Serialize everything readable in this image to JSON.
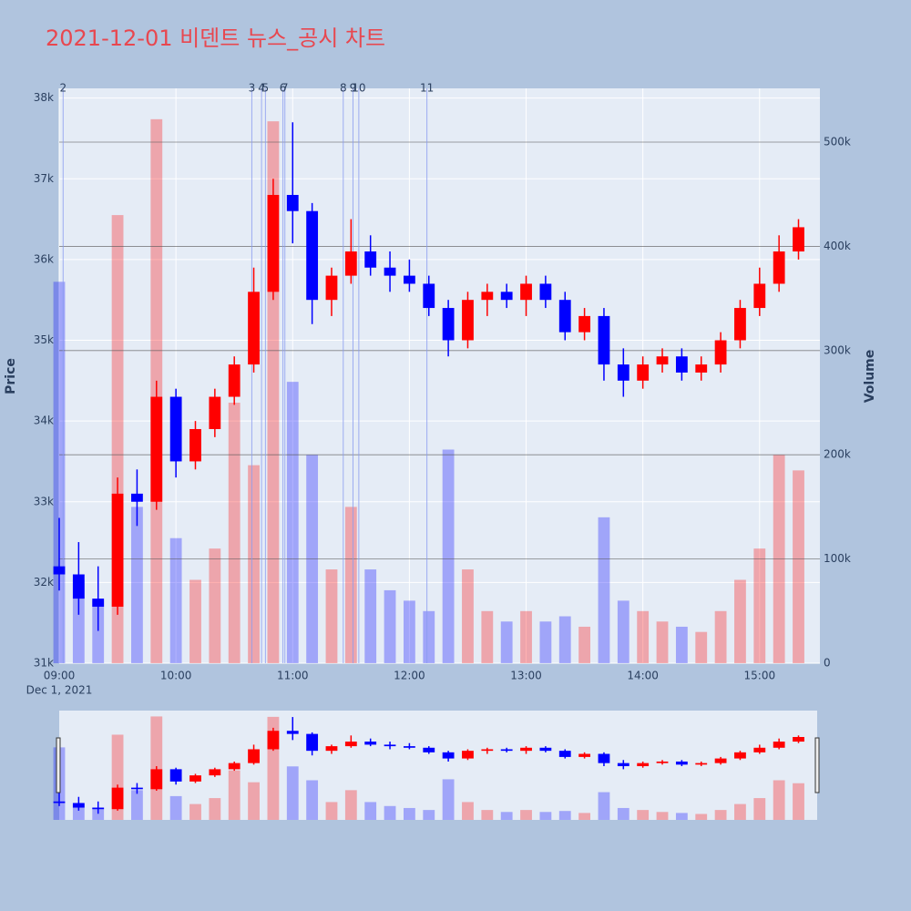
{
  "chart_data": {
    "type": "candlestick",
    "title": "2021-12-01 비덴트 뉴스_공시 차트",
    "ylabel": "Price",
    "y2label": "Volume",
    "x_date_label": "Dec 1, 2021",
    "up_color": "#ff0000",
    "down_color": "#0000ff",
    "x": [
      "2021-12-01 09:00",
      "2021-12-01 09:10",
      "2021-12-01 09:20",
      "2021-12-01 09:30",
      "2021-12-01 09:40",
      "2021-12-01 09:50",
      "2021-12-01 10:00",
      "2021-12-01 10:10",
      "2021-12-01 10:20",
      "2021-12-01 10:30",
      "2021-12-01 10:40",
      "2021-12-01 10:50",
      "2021-12-01 11:00",
      "2021-12-01 11:10",
      "2021-12-01 11:20",
      "2021-12-01 11:30",
      "2021-12-01 11:40",
      "2021-12-01 11:50",
      "2021-12-01 12:00",
      "2021-12-01 12:10",
      "2021-12-01 12:20",
      "2021-12-01 12:30",
      "2021-12-01 12:40",
      "2021-12-01 12:50",
      "2021-12-01 13:00",
      "2021-12-01 13:10",
      "2021-12-01 13:20",
      "2021-12-01 13:30",
      "2021-12-01 13:40",
      "2021-12-01 13:50",
      "2021-12-01 14:00",
      "2021-12-01 14:10",
      "2021-12-01 14:20",
      "2021-12-01 14:30",
      "2021-12-01 14:40",
      "2021-12-01 14:50",
      "2021-12-01 15:00",
      "2021-12-01 15:10",
      "2021-12-01 15:20"
    ],
    "open": [
      32200,
      32100,
      31800,
      31700,
      33100,
      33000,
      34300,
      33500,
      33900,
      34300,
      34700,
      35600,
      36800,
      36600,
      35500,
      35800,
      36100,
      35900,
      35800,
      35700,
      35400,
      35000,
      35500,
      35600,
      35500,
      35700,
      35500,
      35100,
      35300,
      34700,
      34500,
      34700,
      34800,
      34600,
      34700,
      35000,
      35400,
      35700,
      36100
    ],
    "high": [
      32800,
      32500,
      32200,
      33300,
      33400,
      34500,
      34400,
      34000,
      34400,
      34800,
      35900,
      37000,
      37700,
      36700,
      35900,
      36500,
      36300,
      36100,
      36000,
      35800,
      35500,
      35600,
      35700,
      35700,
      35800,
      35800,
      35600,
      35400,
      35400,
      34900,
      34800,
      34900,
      34900,
      34800,
      35100,
      35500,
      35900,
      36300,
      36500
    ],
    "low": [
      31900,
      31600,
      31400,
      31600,
      32700,
      32900,
      33300,
      33400,
      33800,
      34200,
      34600,
      35500,
      36200,
      35200,
      35300,
      35700,
      35800,
      35600,
      35600,
      35300,
      34800,
      34900,
      35300,
      35400,
      35300,
      35400,
      35000,
      35000,
      34500,
      34300,
      34400,
      34600,
      34500,
      34500,
      34600,
      34900,
      35300,
      35600,
      36000
    ],
    "close": [
      32100,
      31800,
      31700,
      33100,
      33000,
      34300,
      33500,
      33900,
      34300,
      34700,
      35600,
      36800,
      36600,
      35500,
      35800,
      36100,
      35900,
      35800,
      35700,
      35400,
      35000,
      35500,
      35600,
      35500,
      35700,
      35500,
      35100,
      35300,
      34700,
      34500,
      34700,
      34800,
      34600,
      34700,
      35000,
      35400,
      35700,
      36100,
      36400
    ],
    "volume": [
      366000,
      80000,
      60000,
      430000,
      150000,
      522000,
      120000,
      80000,
      110000,
      250000,
      190000,
      520000,
      270000,
      200000,
      90000,
      150000,
      90000,
      70000,
      60000,
      50000,
      205000,
      90000,
      50000,
      40000,
      50000,
      40000,
      45000,
      35000,
      140000,
      60000,
      50000,
      40000,
      35000,
      30000,
      50000,
      80000,
      110000,
      200000,
      185000
    ],
    "xlim": [
      "2021-12-01 09:00",
      "2021-12-01 15:31"
    ],
    "xticks": [
      {
        "value": "2021-12-01 09:00",
        "label": "09:00"
      },
      {
        "value": "2021-12-01 10:00",
        "label": "10:00"
      },
      {
        "value": "2021-12-01 11:00",
        "label": "11:00"
      },
      {
        "value": "2021-12-01 12:00",
        "label": "12:00"
      },
      {
        "value": "2021-12-01 13:00",
        "label": "13:00"
      },
      {
        "value": "2021-12-01 14:00",
        "label": "14:00"
      },
      {
        "value": "2021-12-01 15:00",
        "label": "15:00"
      }
    ],
    "ylim": [
      31000,
      38120
    ],
    "yticks": [
      {
        "value": 31000,
        "label": "31k"
      },
      {
        "value": 32000,
        "label": "32k"
      },
      {
        "value": 33000,
        "label": "33k"
      },
      {
        "value": 34000,
        "label": "34k"
      },
      {
        "value": 35000,
        "label": "35k"
      },
      {
        "value": 36000,
        "label": "36k"
      },
      {
        "value": 37000,
        "label": "37k"
      },
      {
        "value": 38000,
        "label": "38k"
      }
    ],
    "y2lim": [
      0,
      551600
    ],
    "y2ticks": [
      0,
      {
        "value": 100000,
        "label": "100k"
      },
      {
        "value": 200000,
        "label": "200k"
      },
      {
        "value": 300000,
        "label": "300k"
      },
      {
        "value": 400000,
        "label": "400k"
      },
      {
        "value": 500000,
        "label": "500k"
      }
    ],
    "annotations": [
      {
        "x": "2021-12-01 09:02",
        "label": "2"
      },
      {
        "x": "2021-12-01 10:39",
        "label": "3"
      },
      {
        "x": "2021-12-01 10:44",
        "label": "4"
      },
      {
        "x": "2021-12-01 10:46",
        "label": "5"
      },
      {
        "x": "2021-12-01 10:55",
        "label": "6"
      },
      {
        "x": "2021-12-01 10:56",
        "label": "7"
      },
      {
        "x": "2021-12-01 11:26",
        "label": "8"
      },
      {
        "x": "2021-12-01 11:31",
        "label": "9"
      },
      {
        "x": "2021-12-01 11:34",
        "label": "10"
      },
      {
        "x": "2021-12-01 12:09",
        "label": "11"
      }
    ]
  }
}
